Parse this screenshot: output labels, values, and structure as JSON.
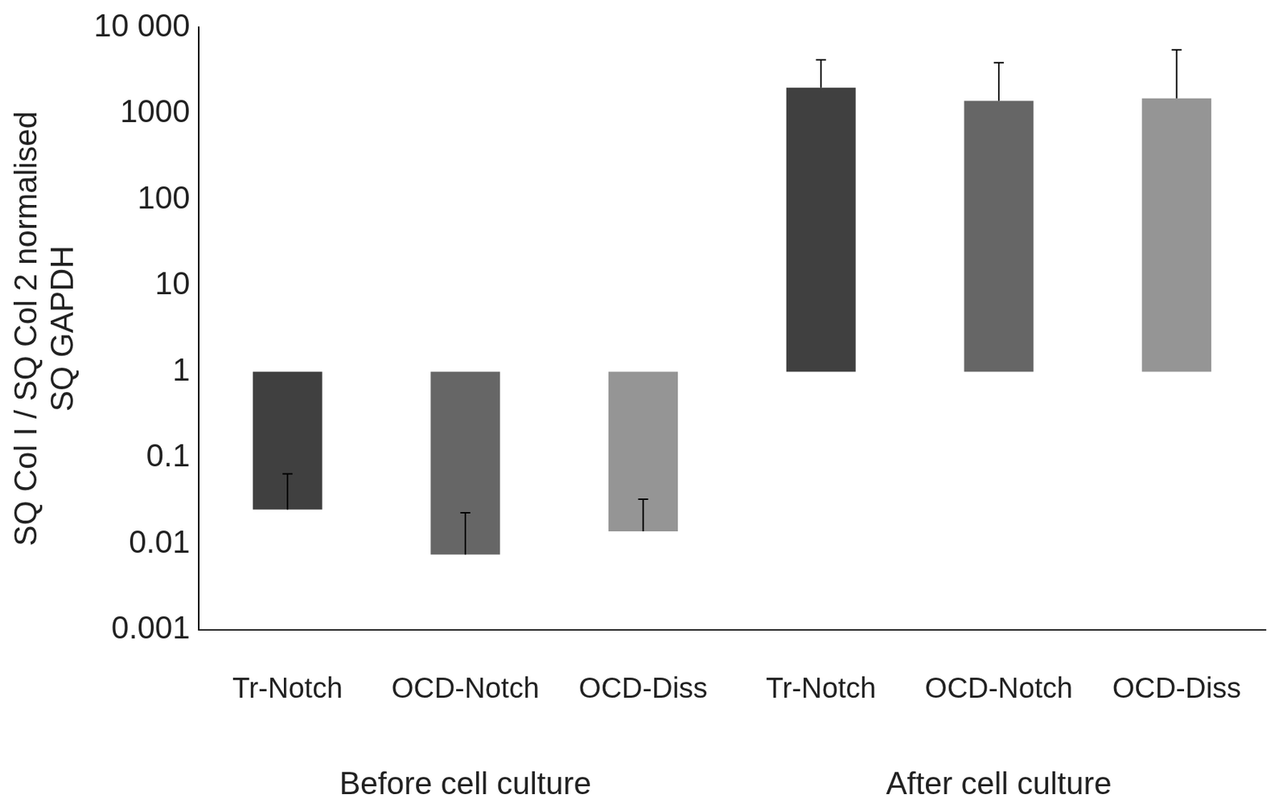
{
  "chart_data": {
    "type": "bar",
    "y_label": [
      "SQ Col I / SQ Col 2 normalised",
      "SQ GAPDH"
    ],
    "categories": [
      "Tr-Notch",
      "OCD-Notch",
      "OCD-Diss",
      "Tr-Notch",
      "OCD-Notch",
      "OCD-Diss"
    ],
    "groups": [
      {
        "name": "Before cell culture",
        "size": 3
      },
      {
        "name": "After cell culture",
        "size": 3
      }
    ],
    "values": [
      0.025,
      0.0075,
      0.014,
      2000,
      1400,
      1500
    ],
    "base": 1,
    "error_high": [
      0.065,
      0.023,
      0.033,
      4200,
      3900,
      5500
    ],
    "colors": [
      "#404040",
      "#666666",
      "#959595",
      "#404040",
      "#666666",
      "#959595"
    ],
    "log": "y",
    "ylim": [
      0.001,
      10000
    ],
    "yticks": [
      0.001,
      0.01,
      0.1,
      1,
      10,
      100,
      1000,
      {
        "value": 10000,
        "label": "10 000"
      }
    ],
    "grid": false
  }
}
